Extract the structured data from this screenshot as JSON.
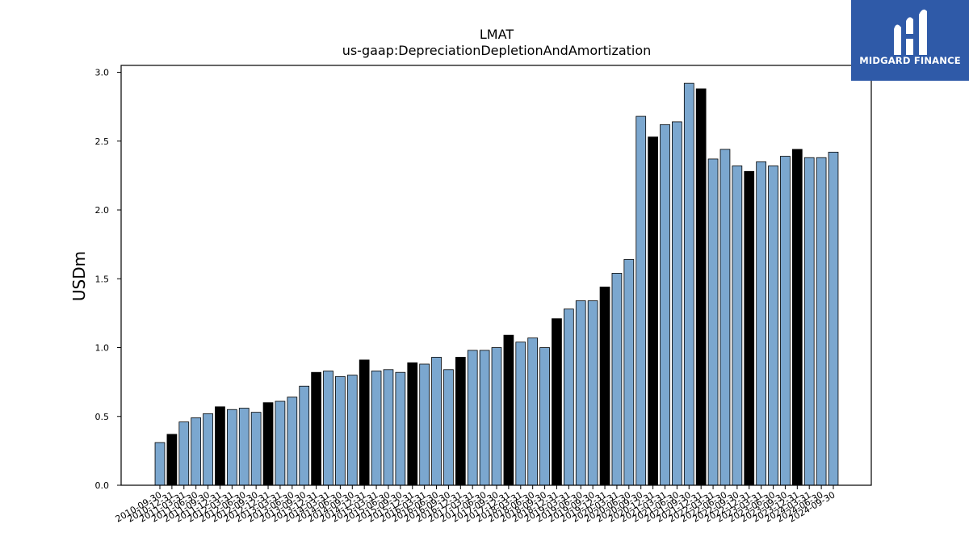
{
  "brand": {
    "name": "MIDGARD FINANCE",
    "logo_icon": "midgard-m-logo-icon",
    "background": "#2f5aa8"
  },
  "colors": {
    "bar_default": "#7ba7cf",
    "bar_highlight": "#000000",
    "bar_edge": "#000000"
  },
  "chart_data": {
    "type": "bar",
    "title": "LMAT",
    "subtitle": "us-gaap:DepreciationDepletionAndAmortization",
    "xlabel": "",
    "ylabel": "USDm",
    "ylim": [
      0,
      3.05
    ],
    "yticks": [
      "0.0",
      "0.5",
      "1.0",
      "1.5",
      "2.0",
      "2.5",
      "3.0"
    ],
    "grid": false,
    "categories": [
      "2010-09-30",
      "2010-12-31",
      "2011-03-31",
      "2011-06-30",
      "2011-09-30",
      "2011-12-31",
      "2012-03-31",
      "2012-06-30",
      "2012-09-30",
      "2012-12-31",
      "2013-03-31",
      "2013-06-30",
      "2013-09-30",
      "2013-12-31",
      "2014-03-31",
      "2014-06-30",
      "2014-09-30",
      "2014-12-31",
      "2015-03-31",
      "2015-06-30",
      "2015-09-30",
      "2015-12-31",
      "2016-03-31",
      "2016-06-30",
      "2016-09-30",
      "2016-12-31",
      "2017-03-31",
      "2017-06-30",
      "2017-09-30",
      "2017-12-31",
      "2018-03-31",
      "2018-06-30",
      "2018-09-30",
      "2018-12-31",
      "2019-03-31",
      "2019-06-30",
      "2019-09-30",
      "2019-12-31",
      "2020-03-31",
      "2020-06-30",
      "2020-09-30",
      "2020-12-31",
      "2021-03-31",
      "2021-06-30",
      "2021-09-30",
      "2021-12-31",
      "2022-03-31",
      "2022-06-30",
      "2022-09-30",
      "2022-12-31",
      "2023-03-31",
      "2023-06-30",
      "2023-09-30",
      "2023-12-31",
      "2024-03-31",
      "2024-06-30",
      "2024-09-30"
    ],
    "values": [
      0.31,
      0.37,
      0.46,
      0.49,
      0.52,
      0.57,
      0.55,
      0.56,
      0.53,
      0.6,
      0.61,
      0.64,
      0.72,
      0.82,
      0.83,
      0.79,
      0.8,
      0.91,
      0.83,
      0.84,
      0.82,
      0.89,
      0.88,
      0.93,
      0.84,
      0.93,
      0.98,
      0.98,
      1.0,
      1.09,
      1.04,
      1.07,
      1.0,
      1.21,
      1.28,
      1.34,
      1.34,
      1.44,
      1.54,
      1.64,
      2.68,
      2.53,
      2.62,
      2.64,
      2.92,
      2.88,
      2.37,
      2.44,
      2.32,
      2.28,
      2.35,
      2.32,
      2.39,
      2.44,
      2.38,
      2.38,
      2.42
    ],
    "highlight": [
      false,
      true,
      false,
      false,
      false,
      true,
      false,
      false,
      false,
      true,
      false,
      false,
      false,
      true,
      false,
      false,
      false,
      true,
      false,
      false,
      false,
      true,
      false,
      false,
      false,
      true,
      false,
      false,
      false,
      true,
      false,
      false,
      false,
      true,
      false,
      false,
      false,
      true,
      false,
      false,
      false,
      true,
      false,
      false,
      false,
      true,
      false,
      false,
      false,
      true,
      false,
      false,
      false,
      true,
      false,
      false,
      false
    ]
  }
}
